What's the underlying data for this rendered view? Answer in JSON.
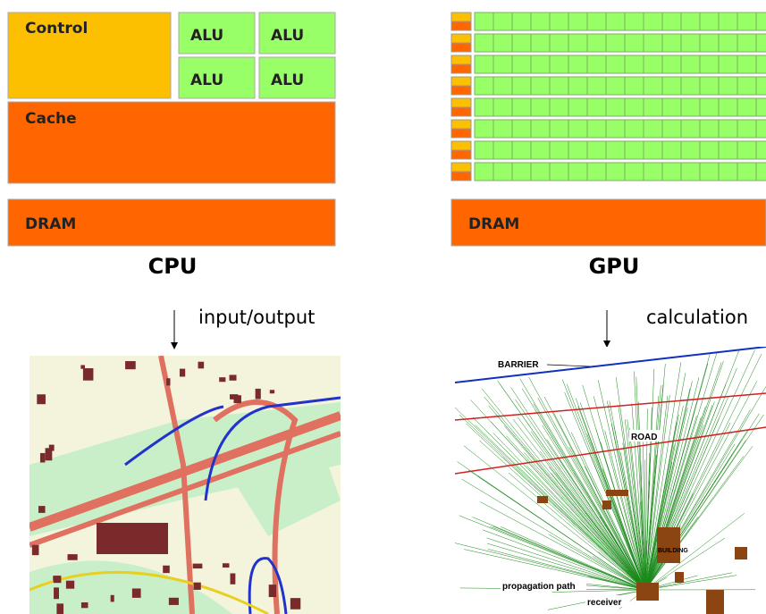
{
  "cpu": {
    "control": "Control",
    "alus": [
      "ALU",
      "ALU",
      "ALU",
      "ALU"
    ],
    "cache": "Cache",
    "dram": "DRAM",
    "label": "CPU"
  },
  "gpu": {
    "dram": "DRAM",
    "label": "GPU"
  },
  "arrows": {
    "left": "input/output",
    "right": "calculation"
  },
  "propagation": {
    "barrier": "BARRIER",
    "road": "ROAD",
    "building": "BUILDING",
    "path": "propagation path",
    "receiver": "receiver"
  }
}
